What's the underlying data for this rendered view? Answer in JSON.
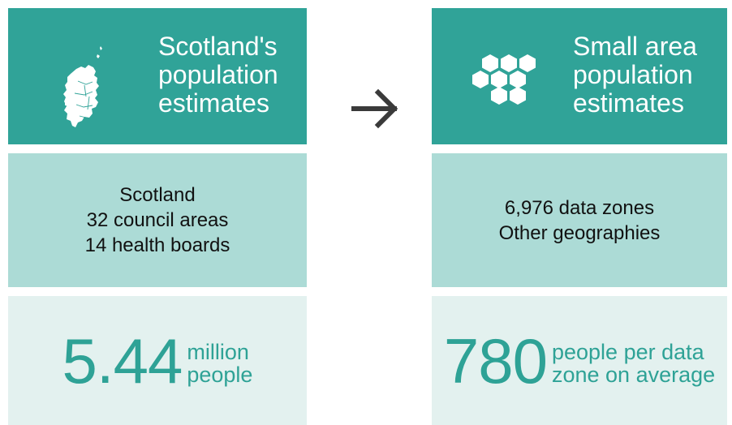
{
  "left": {
    "header": {
      "lines": [
        "Scotland's",
        "population",
        "estimates"
      ]
    },
    "coverage": {
      "lines": [
        "Scotland",
        "32 council areas",
        "14 health boards"
      ]
    },
    "stat": {
      "value": "5.44",
      "caption": [
        "million",
        "people"
      ]
    }
  },
  "right": {
    "header": {
      "lines": [
        "Small area",
        "population",
        "estimates"
      ]
    },
    "coverage": {
      "lines": [
        "6,976 data zones",
        "Other geographies"
      ]
    },
    "stat": {
      "value": "780",
      "caption": [
        "people per data",
        "zone on average"
      ]
    }
  },
  "icons": {
    "left_header": "scotland-map-icon",
    "right_header": "hexagon-cluster-icon",
    "connector": "arrow-right-icon"
  },
  "colors": {
    "header": "#30a398",
    "coverage": "#acdbd6",
    "stat": "#e3f1ef",
    "stat_text": "#2ea296",
    "arrow": "#3a3a3a"
  }
}
